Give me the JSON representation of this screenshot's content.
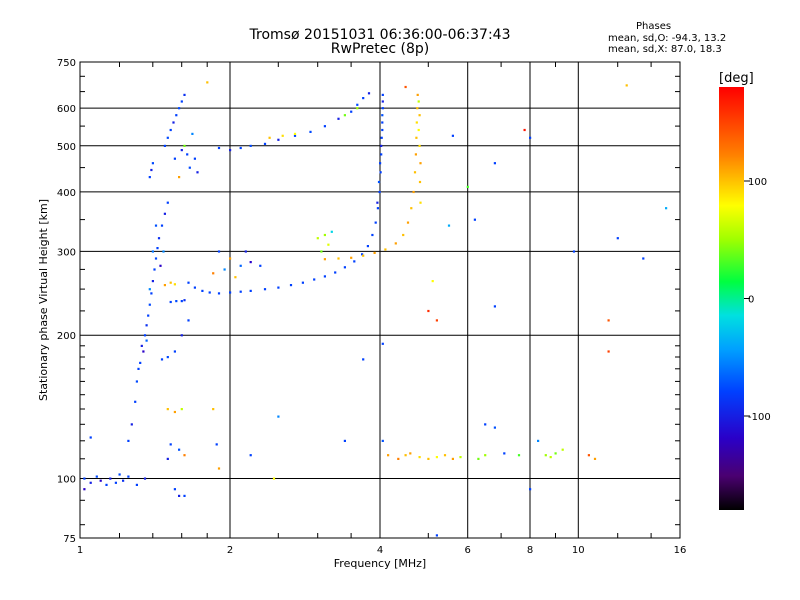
{
  "header": {
    "title_line1": "Tromsø 20151031 06:36:00-06:37:43",
    "title_line2": "RwPretec (8p)"
  },
  "phases_box": {
    "title": "Phases",
    "line1": "mean, sd,O: -94.3, 13.2",
    "line2": "mean, sd,X:  87.0, 18.3"
  },
  "colorbar": {
    "unit": "[deg]",
    "ticks": [
      {
        "value": 100,
        "label": "100"
      },
      {
        "value": 0,
        "label": "0"
      },
      {
        "value": -100,
        "label": "-100"
      }
    ],
    "range": [
      -180,
      180
    ]
  },
  "chart_data": {
    "type": "scatter",
    "title": "Tromsø 20151031 06:36:00-06:37:43",
    "subtitle": "RwPretec (8p)",
    "xlabel": "Frequency [MHz]",
    "ylabel": "Stationary phase Virtual Height [km]",
    "x_scale": "log",
    "y_scale": "log",
    "xlim": [
      1,
      16
    ],
    "ylim": [
      75,
      750
    ],
    "x_ticks": [
      {
        "value": 1,
        "label": "1"
      },
      {
        "value": 2,
        "label": "2"
      },
      {
        "value": 4,
        "label": "4"
      },
      {
        "value": 6,
        "label": "6"
      },
      {
        "value": 8,
        "label": "8"
      },
      {
        "value": 10,
        "label": "10"
      },
      {
        "value": 16,
        "label": "16"
      }
    ],
    "y_ticks": [
      {
        "value": 750,
        "label": "750"
      },
      {
        "value": 600,
        "label": "600"
      },
      {
        "value": 500,
        "label": "500"
      },
      {
        "value": 400,
        "label": "400"
      },
      {
        "value": 300,
        "label": "300"
      },
      {
        "value": 200,
        "label": "200"
      },
      {
        "value": 100,
        "label": "100"
      },
      {
        "value": 75,
        "label": "75"
      }
    ],
    "x_gridlines": [
      2,
      4,
      6,
      8,
      10
    ],
    "y_gridlines": [
      600,
      500,
      400,
      300,
      200,
      100
    ],
    "minor_x_ticks": [
      1.2,
      1.4,
      1.6,
      1.8,
      2.5,
      3,
      3.5,
      5,
      7,
      9,
      12,
      14
    ],
    "minor_y_ticks": [
      80,
      90,
      110,
      120,
      130,
      140,
      150,
      160,
      170,
      180,
      190,
      225,
      250,
      275,
      350,
      450,
      550,
      650,
      700
    ],
    "grid": true,
    "points": [
      [
        1.02,
        100,
        -100
      ],
      [
        1.05,
        98,
        -110
      ],
      [
        1.08,
        101,
        -95
      ],
      [
        1.1,
        99,
        -120
      ],
      [
        1.13,
        97,
        -100
      ],
      [
        1.15,
        100,
        -110
      ],
      [
        1.18,
        98,
        -100
      ],
      [
        1.2,
        102,
        -95
      ],
      [
        1.22,
        99,
        -105
      ],
      [
        1.25,
        101,
        -100
      ],
      [
        1.05,
        122,
        -100
      ],
      [
        1.02,
        95,
        -120
      ],
      [
        1.25,
        120,
        -100
      ],
      [
        1.27,
        130,
        -110
      ],
      [
        1.29,
        145,
        -100
      ],
      [
        1.3,
        160,
        -95
      ],
      [
        1.32,
        175,
        -100
      ],
      [
        1.33,
        190,
        -110
      ],
      [
        1.35,
        200,
        -100
      ],
      [
        1.36,
        210,
        -105
      ],
      [
        1.37,
        220,
        -100
      ],
      [
        1.38,
        232,
        -95
      ],
      [
        1.39,
        245,
        -100
      ],
      [
        1.4,
        260,
        -110
      ],
      [
        1.41,
        275,
        -100
      ],
      [
        1.42,
        290,
        -95
      ],
      [
        1.43,
        305,
        -100
      ],
      [
        1.44,
        320,
        -105
      ],
      [
        1.46,
        340,
        -100
      ],
      [
        1.48,
        360,
        -110
      ],
      [
        1.5,
        380,
        -100
      ],
      [
        1.34,
        185,
        -120
      ],
      [
        1.36,
        195,
        -80
      ],
      [
        1.31,
        170,
        -100
      ],
      [
        1.38,
        250,
        -60
      ],
      [
        1.4,
        300,
        -70
      ],
      [
        1.45,
        280,
        -120
      ],
      [
        1.47,
        300,
        -60
      ],
      [
        1.42,
        340,
        -90
      ],
      [
        1.46,
        178,
        -100
      ],
      [
        1.5,
        180,
        -95
      ],
      [
        1.55,
        185,
        -100
      ],
      [
        1.6,
        200,
        -110
      ],
      [
        1.65,
        215,
        -100
      ],
      [
        1.52,
        235,
        -100
      ],
      [
        1.56,
        236,
        -95
      ],
      [
        1.6,
        236,
        -100
      ],
      [
        1.62,
        237,
        -105
      ],
      [
        1.48,
        255,
        110
      ],
      [
        1.52,
        258,
        100
      ],
      [
        1.55,
        256,
        90
      ],
      [
        1.38,
        430,
        -100
      ],
      [
        1.39,
        445,
        -110
      ],
      [
        1.4,
        460,
        -95
      ],
      [
        1.48,
        500,
        -100
      ],
      [
        1.5,
        520,
        -95
      ],
      [
        1.52,
        540,
        -100
      ],
      [
        1.54,
        560,
        -110
      ],
      [
        1.56,
        580,
        -100
      ],
      [
        1.58,
        600,
        -95
      ],
      [
        1.6,
        620,
        -100
      ],
      [
        1.62,
        640,
        -105
      ],
      [
        1.55,
        470,
        -100
      ],
      [
        1.6,
        490,
        -110
      ],
      [
        1.64,
        480,
        -100
      ],
      [
        1.66,
        450,
        -95
      ],
      [
        1.7,
        470,
        -100
      ],
      [
        1.72,
        440,
        -110
      ],
      [
        1.58,
        430,
        110
      ],
      [
        1.62,
        500,
        40
      ],
      [
        1.68,
        530,
        -60
      ],
      [
        1.65,
        258,
        -100
      ],
      [
        1.7,
        252,
        -100
      ],
      [
        1.76,
        248,
        -100
      ],
      [
        1.82,
        246,
        -100
      ],
      [
        1.9,
        245,
        -100
      ],
      [
        2.0,
        246,
        -100
      ],
      [
        2.1,
        247,
        -100
      ],
      [
        2.2,
        248,
        -100
      ],
      [
        2.35,
        250,
        -100
      ],
      [
        2.5,
        252,
        -100
      ],
      [
        2.65,
        255,
        -100
      ],
      [
        2.8,
        258,
        -100
      ],
      [
        2.95,
        262,
        -100
      ],
      [
        3.1,
        266,
        -100
      ],
      [
        3.25,
        271,
        -100
      ],
      [
        3.4,
        278,
        -100
      ],
      [
        3.55,
        286,
        -100
      ],
      [
        3.68,
        296,
        -100
      ],
      [
        3.78,
        308,
        -100
      ],
      [
        3.86,
        325,
        -100
      ],
      [
        3.92,
        345,
        -100
      ],
      [
        3.96,
        370,
        -100
      ],
      [
        3.99,
        400,
        -100
      ],
      [
        4.01,
        440,
        -100
      ],
      [
        4.02,
        480,
        -100
      ],
      [
        4.03,
        520,
        -100
      ],
      [
        4.04,
        560,
        -100
      ],
      [
        4.05,
        600,
        -100
      ],
      [
        4.05,
        640,
        -100
      ],
      [
        3.95,
        380,
        -110
      ],
      [
        3.98,
        420,
        -90
      ],
      [
        4.0,
        460,
        -100
      ],
      [
        4.02,
        500,
        -110
      ],
      [
        4.04,
        540,
        -100
      ],
      [
        4.04,
        580,
        -90
      ],
      [
        4.05,
        620,
        -110
      ],
      [
        3.1,
        289,
        110
      ],
      [
        3.3,
        290,
        100
      ],
      [
        3.5,
        291,
        110
      ],
      [
        3.7,
        294,
        100
      ],
      [
        3.9,
        298,
        110
      ],
      [
        4.1,
        303,
        100
      ],
      [
        4.3,
        312,
        110
      ],
      [
        4.45,
        325,
        100
      ],
      [
        4.55,
        345,
        110
      ],
      [
        4.62,
        370,
        100
      ],
      [
        4.67,
        400,
        110
      ],
      [
        4.7,
        440,
        100
      ],
      [
        4.72,
        480,
        110
      ],
      [
        4.73,
        520,
        100
      ],
      [
        4.74,
        560,
        90
      ],
      [
        4.75,
        600,
        100
      ],
      [
        4.76,
        640,
        110
      ],
      [
        4.78,
        620,
        60
      ],
      [
        4.8,
        580,
        100
      ],
      [
        4.78,
        540,
        80
      ],
      [
        4.8,
        500,
        90
      ],
      [
        4.82,
        460,
        110
      ],
      [
        4.81,
        420,
        100
      ],
      [
        4.82,
        380,
        90
      ],
      [
        1.9,
        495,
        -100
      ],
      [
        2.0,
        490,
        -110
      ],
      [
        2.1,
        495,
        -100
      ],
      [
        2.2,
        500,
        -95
      ],
      [
        2.35,
        505,
        -100
      ],
      [
        2.5,
        515,
        -110
      ],
      [
        2.7,
        525,
        -100
      ],
      [
        2.9,
        535,
        -95
      ],
      [
        3.1,
        550,
        -100
      ],
      [
        3.3,
        570,
        -110
      ],
      [
        3.5,
        590,
        -100
      ],
      [
        3.6,
        610,
        -95
      ],
      [
        3.7,
        630,
        -100
      ],
      [
        3.8,
        645,
        -110
      ],
      [
        2.4,
        520,
        100
      ],
      [
        2.55,
        525,
        90
      ],
      [
        2.7,
        530,
        80
      ],
      [
        3.6,
        600,
        50
      ],
      [
        3.4,
        580,
        40
      ],
      [
        1.9,
        300,
        -100
      ],
      [
        2.0,
        290,
        110
      ],
      [
        2.1,
        280,
        -80
      ],
      [
        1.85,
        270,
        120
      ],
      [
        2.2,
        285,
        -120
      ],
      [
        2.05,
        265,
        100
      ],
      [
        1.95,
        275,
        -60
      ],
      [
        2.3,
        280,
        -100
      ],
      [
        2.15,
        300,
        -110
      ],
      [
        3.0,
        320,
        60
      ],
      [
        3.1,
        325,
        50
      ],
      [
        3.2,
        330,
        -20
      ],
      [
        3.05,
        300,
        40
      ],
      [
        3.15,
        310,
        70
      ],
      [
        1.5,
        140,
        100
      ],
      [
        1.55,
        138,
        110
      ],
      [
        1.6,
        140,
        60
      ],
      [
        1.52,
        118,
        -100
      ],
      [
        1.58,
        115,
        -90
      ],
      [
        1.62,
        112,
        120
      ],
      [
        1.5,
        110,
        -110
      ],
      [
        1.55,
        95,
        -100
      ],
      [
        1.58,
        92,
        -110
      ],
      [
        1.62,
        92,
        -100
      ],
      [
        1.3,
        97,
        -100
      ],
      [
        1.35,
        100,
        -110
      ],
      [
        1.85,
        140,
        100
      ],
      [
        1.88,
        118,
        -100
      ],
      [
        1.9,
        105,
        110
      ],
      [
        2.2,
        112,
        -100
      ],
      [
        2.45,
        100,
        80
      ],
      [
        2.5,
        135,
        -60
      ],
      [
        3.4,
        120,
        -100
      ],
      [
        3.7,
        178,
        -100
      ],
      [
        4.05,
        192,
        -100
      ],
      [
        4.05,
        120,
        -90
      ],
      [
        4.15,
        112,
        110
      ],
      [
        4.35,
        110,
        120
      ],
      [
        4.5,
        112,
        100
      ],
      [
        4.6,
        113,
        110
      ],
      [
        4.8,
        111,
        90
      ],
      [
        5.0,
        110,
        100
      ],
      [
        5.2,
        111,
        80
      ],
      [
        5.4,
        112,
        100
      ],
      [
        5.6,
        110,
        110
      ],
      [
        5.8,
        111,
        60
      ],
      [
        6.3,
        110,
        40
      ],
      [
        6.5,
        112,
        50
      ],
      [
        7.1,
        113,
        -100
      ],
      [
        7.6,
        112,
        30
      ],
      [
        8.3,
        120,
        -60
      ],
      [
        8.6,
        112,
        50
      ],
      [
        8.8,
        111,
        60
      ],
      [
        9.0,
        113,
        40
      ],
      [
        9.3,
        115,
        60
      ],
      [
        10.5,
        112,
        140
      ],
      [
        10.8,
        110,
        110
      ],
      [
        6.5,
        130,
        -100
      ],
      [
        6.8,
        128,
        -90
      ],
      [
        8.0,
        95,
        -100
      ],
      [
        8.0,
        520,
        -100
      ],
      [
        6.8,
        460,
        -100
      ],
      [
        6.2,
        350,
        -100
      ],
      [
        6.0,
        410,
        30
      ],
      [
        5.6,
        525,
        -100
      ],
      [
        12.0,
        320,
        -100
      ],
      [
        15.0,
        370,
        -40
      ],
      [
        13.5,
        290,
        -100
      ],
      [
        11.5,
        185,
        150
      ],
      [
        11.5,
        215,
        140
      ],
      [
        5.0,
        225,
        160
      ],
      [
        5.2,
        215,
        150
      ],
      [
        5.5,
        340,
        -40
      ],
      [
        5.1,
        260,
        80
      ],
      [
        6.8,
        230,
        -100
      ],
      [
        7.8,
        540,
        170
      ],
      [
        9.8,
        300,
        -100
      ],
      [
        12.5,
        670,
        100
      ],
      [
        4.5,
        665,
        140
      ],
      [
        5.2,
        76,
        -100
      ],
      [
        1.8,
        680,
        100
      ]
    ]
  }
}
